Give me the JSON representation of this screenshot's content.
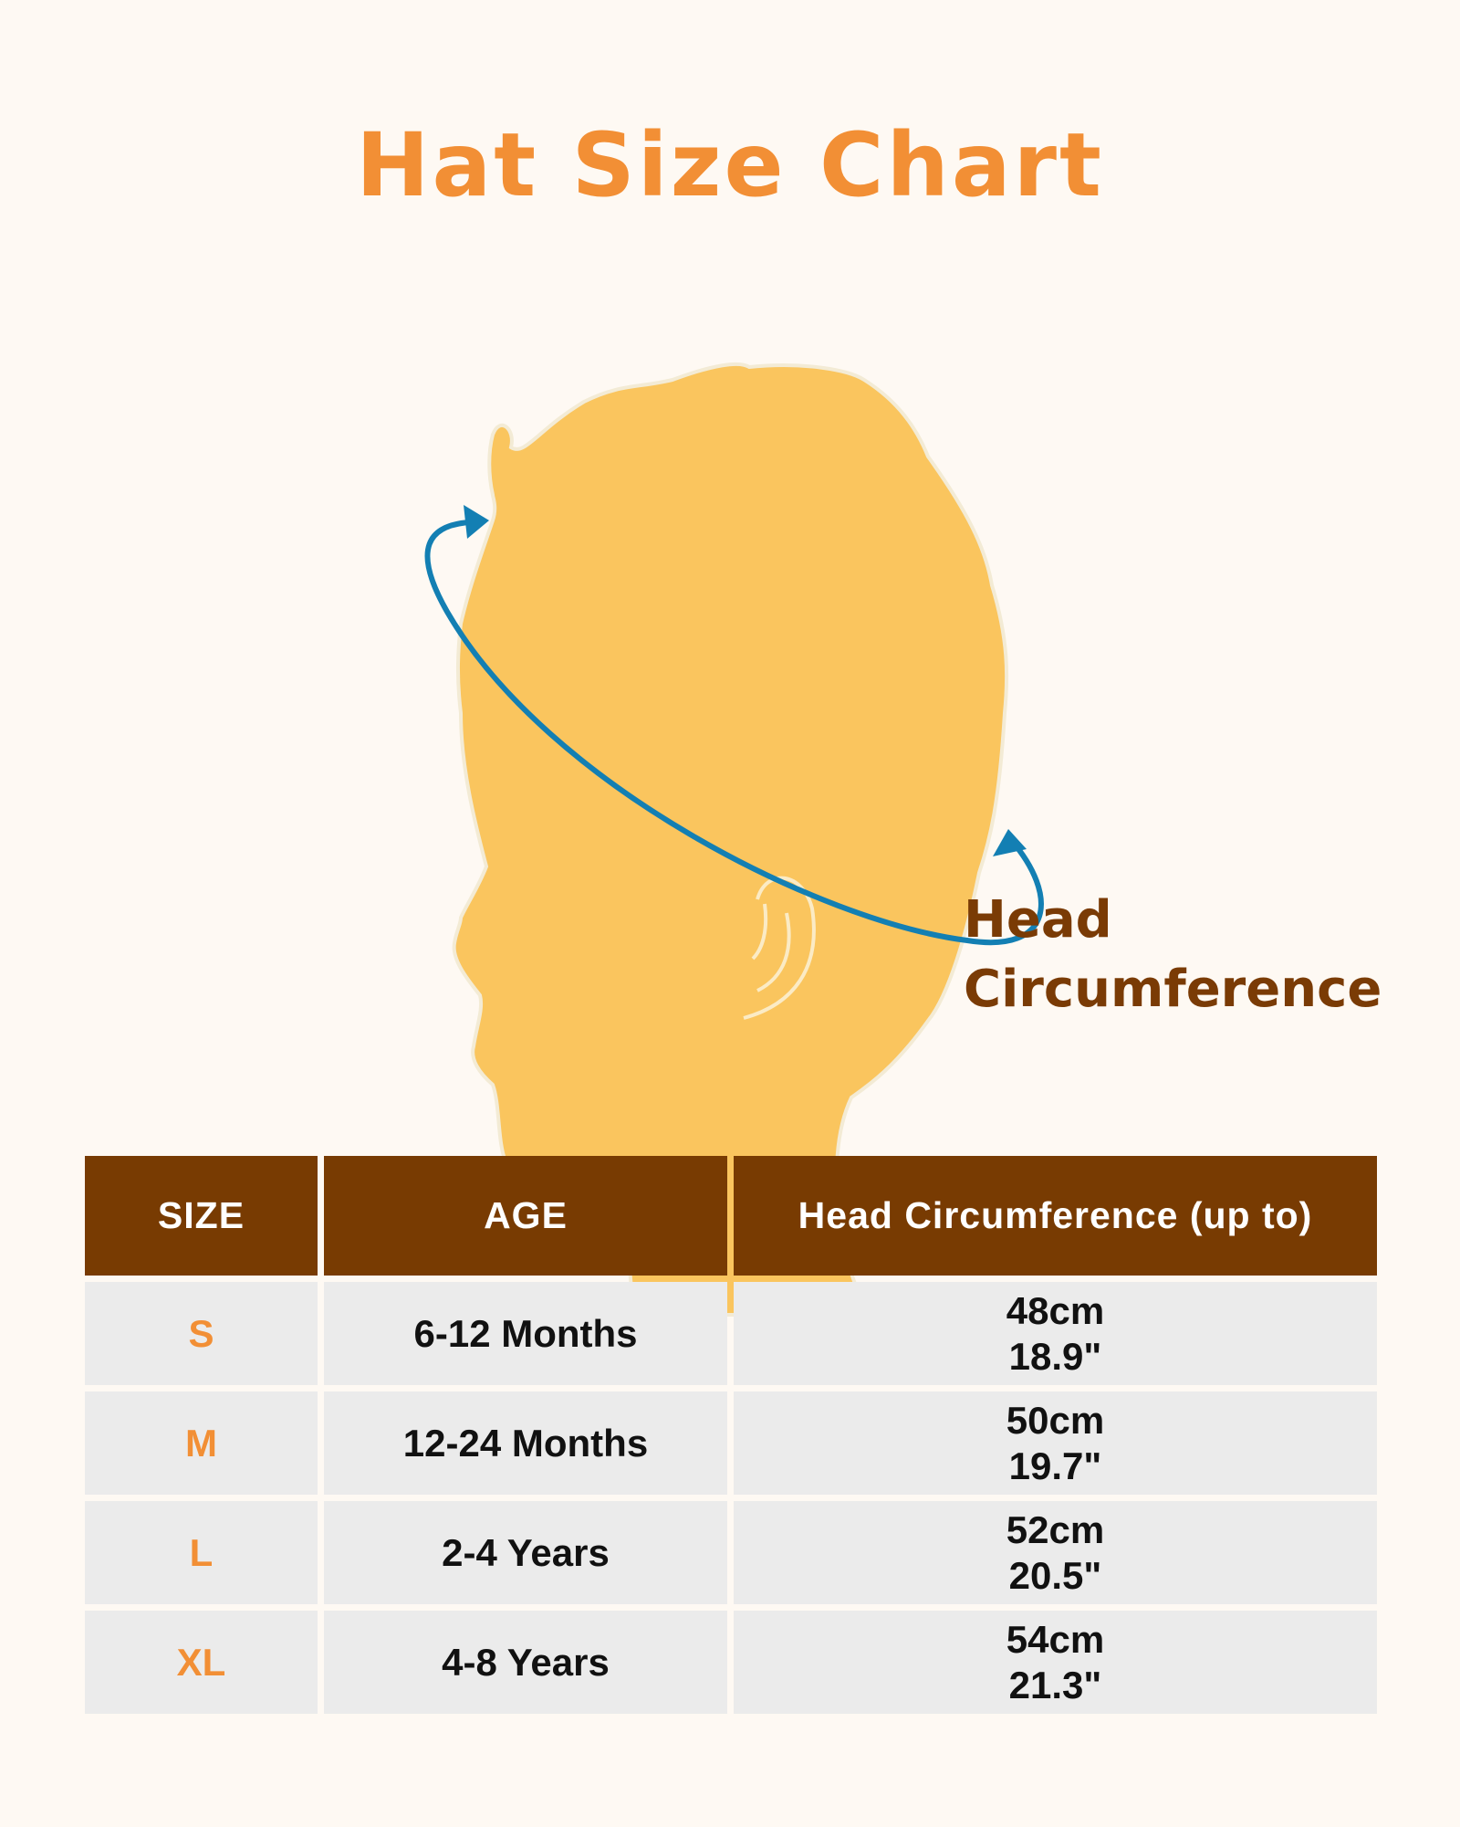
{
  "title": "Hat Size Chart",
  "illustration": {
    "label_line1": "Head",
    "label_line2": "Circumference",
    "head_color": "#FAC55E",
    "arrow_color": "#137FB3"
  },
  "table": {
    "headers": [
      "SIZE",
      "AGE",
      "Head Circumference (up to)"
    ],
    "rows": [
      {
        "size": "S",
        "age": "6-12 Months",
        "cm": "48cm",
        "in": "18.9\""
      },
      {
        "size": "M",
        "age": "12-24 Months",
        "cm": "50cm",
        "in": "19.7\""
      },
      {
        "size": "L",
        "age": "2-4 Years",
        "cm": "52cm",
        "in": "20.5\""
      },
      {
        "size": "XL",
        "age": "4-8 Years",
        "cm": "54cm",
        "in": "21.3\""
      }
    ]
  }
}
